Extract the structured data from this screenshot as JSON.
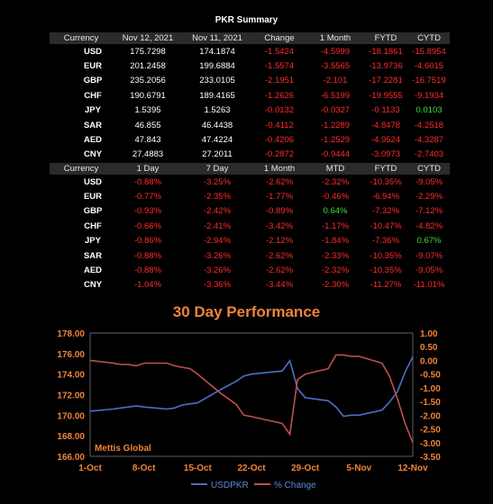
{
  "summary_title": "PKR Summary",
  "table1": {
    "headers": [
      "Currency",
      "Nov 12, 2021",
      "Nov 11, 2021",
      "Change",
      "1 Month",
      "FYTD",
      "CYTD"
    ],
    "rows": [
      [
        "USD",
        "175.7298",
        "174.1874",
        "-1.5424",
        "-4.5999",
        "-18.1861",
        "-15.8954"
      ],
      [
        "EUR",
        "201.2458",
        "199.6884",
        "-1.5574",
        "-3.5565",
        "-13.9736",
        "-4.6015"
      ],
      [
        "GBP",
        "235.2056",
        "233.0105",
        "-2.1951",
        "-2.101",
        "-17.2281",
        "-16.7519"
      ],
      [
        "CHF",
        "190.6791",
        "189.4165",
        "-1.2626",
        "-6.5199",
        "-19.9555",
        "-9.1934"
      ],
      [
        "JPY",
        "1.5395",
        "1.5263",
        "-0.0132",
        "-0.0327",
        "-0.1133",
        "0.0103"
      ],
      [
        "SAR",
        "46.855",
        "46.4438",
        "-0.4112",
        "-1.2289",
        "-4.8478",
        "-4.2518"
      ],
      [
        "AED",
        "47.843",
        "47.4224",
        "-0.4206",
        "-1.2529",
        "-4.9524",
        "-4.3287"
      ],
      [
        "CNY",
        "27.4883",
        "27.2011",
        "-0.2872",
        "-0.9444",
        "-3.0973",
        "-2.7403"
      ]
    ]
  },
  "table2": {
    "headers": [
      "Currency",
      "1 Day",
      "7 Day",
      "1 Month",
      "MTD",
      "FYTD",
      "CYTD"
    ],
    "rows": [
      [
        "USD",
        "-0.88%",
        "-3.25%",
        "-2.62%",
        "-2.32%",
        "-10.35%",
        "-9.05%"
      ],
      [
        "EUR",
        "-0.77%",
        "-2.35%",
        "-1.77%",
        "-0.46%",
        "-6.94%",
        "-2.29%"
      ],
      [
        "GBP",
        "-0.93%",
        "-2.42%",
        "-0.89%",
        "0.64%",
        "-7.32%",
        "-7.12%"
      ],
      [
        "CHF",
        "-0.66%",
        "-2.41%",
        "-3.42%",
        "-1.17%",
        "-10.47%",
        "-4.82%"
      ],
      [
        "JPY",
        "-0.86%",
        "-2.94%",
        "-2.12%",
        "-1.84%",
        "-7.36%",
        "0.67%"
      ],
      [
        "SAR",
        "-0.88%",
        "-3.26%",
        "-2.62%",
        "-2.33%",
        "-10.35%",
        "-9.07%"
      ],
      [
        "AED",
        "-0.88%",
        "-3.26%",
        "-2.62%",
        "-2.32%",
        "-10.35%",
        "-9.05%"
      ],
      [
        "CNY",
        "-1.04%",
        "-3.36%",
        "-3.44%",
        "-2.30%",
        "-11.27%",
        "-11.01%"
      ]
    ]
  },
  "colors": {
    "negative": "#ff2b2b",
    "positive": "#3ddc3d",
    "title": "#f0833a",
    "series_usdpkr": "#4a72c4",
    "series_pct": "#c0504d",
    "tick": "#f0833a"
  },
  "chart_data": {
    "type": "line",
    "title": "30 Day Performance",
    "watermark": "Mettis Global",
    "x_ticks": [
      "1-Oct",
      "8-Oct",
      "15-Oct",
      "22-Oct",
      "29-Oct",
      "5-Nov",
      "12-Nov"
    ],
    "x_range": [
      "1-Oct",
      "12-Nov"
    ],
    "y_left": {
      "range": [
        166,
        178
      ],
      "ticks": [
        "178.00",
        "176.00",
        "174.00",
        "172.00",
        "170.00",
        "168.00",
        "166.00"
      ]
    },
    "y_right": {
      "range": [
        -3.5,
        1.0
      ],
      "ticks": [
        "1.00",
        "0.50",
        "0.00",
        "-0.50",
        "-1.00",
        "-1.50",
        "-2.00",
        "-2.50",
        "-3.00",
        "-3.50"
      ]
    },
    "legend": "bottom",
    "series": [
      {
        "name": "USDPKR",
        "axis": "left",
        "points": [
          [
            "1-Oct",
            170.4
          ],
          [
            "4-Oct",
            170.6
          ],
          [
            "5-Oct",
            170.7
          ],
          [
            "6-Oct",
            170.8
          ],
          [
            "7-Oct",
            170.9
          ],
          [
            "8-Oct",
            170.8
          ],
          [
            "11-Oct",
            170.6
          ],
          [
            "12-Oct",
            170.7
          ],
          [
            "13-Oct",
            171.0
          ],
          [
            "14-Oct",
            171.1
          ],
          [
            "15-Oct",
            171.2
          ],
          [
            "18-Oct",
            172.5
          ],
          [
            "20-Oct",
            173.3
          ],
          [
            "21-Oct",
            173.8
          ],
          [
            "22-Oct",
            174.0
          ],
          [
            "26-Oct",
            174.3
          ],
          [
            "27-Oct",
            175.3
          ],
          [
            "28-Oct",
            172.6
          ],
          [
            "29-Oct",
            171.7
          ],
          [
            "1-Nov",
            171.4
          ],
          [
            "2-Nov",
            170.8
          ],
          [
            "3-Nov",
            169.9
          ],
          [
            "4-Nov",
            170.0
          ],
          [
            "5-Nov",
            170.0
          ],
          [
            "8-Nov",
            170.5
          ],
          [
            "9-Nov",
            171.3
          ],
          [
            "10-Nov",
            172.3
          ],
          [
            "11-Nov",
            174.2
          ],
          [
            "12-Nov",
            175.7
          ]
        ]
      },
      {
        "name": "% Change",
        "axis": "right",
        "points": [
          [
            "1-Oct",
            0.0
          ],
          [
            "4-Oct",
            -0.1
          ],
          [
            "5-Oct",
            -0.15
          ],
          [
            "6-Oct",
            -0.15
          ],
          [
            "7-Oct",
            -0.2
          ],
          [
            "8-Oct",
            -0.1
          ],
          [
            "11-Oct",
            -0.1
          ],
          [
            "12-Oct",
            -0.2
          ],
          [
            "13-Oct",
            -0.25
          ],
          [
            "14-Oct",
            -0.3
          ],
          [
            "15-Oct",
            -0.5
          ],
          [
            "18-Oct",
            -1.2
          ],
          [
            "20-Oct",
            -1.6
          ],
          [
            "21-Oct",
            -2.0
          ],
          [
            "22-Oct",
            -2.05
          ],
          [
            "26-Oct",
            -2.3
          ],
          [
            "27-Oct",
            -2.7
          ],
          [
            "28-Oct",
            -0.7
          ],
          [
            "29-Oct",
            -0.5
          ],
          [
            "1-Nov",
            -0.3
          ],
          [
            "2-Nov",
            0.2
          ],
          [
            "3-Nov",
            0.2
          ],
          [
            "4-Nov",
            0.15
          ],
          [
            "5-Nov",
            0.15
          ],
          [
            "8-Nov",
            -0.1
          ],
          [
            "9-Nov",
            -0.6
          ],
          [
            "10-Nov",
            -1.4
          ],
          [
            "11-Nov",
            -2.3
          ],
          [
            "12-Nov",
            -3.0
          ]
        ]
      }
    ]
  }
}
